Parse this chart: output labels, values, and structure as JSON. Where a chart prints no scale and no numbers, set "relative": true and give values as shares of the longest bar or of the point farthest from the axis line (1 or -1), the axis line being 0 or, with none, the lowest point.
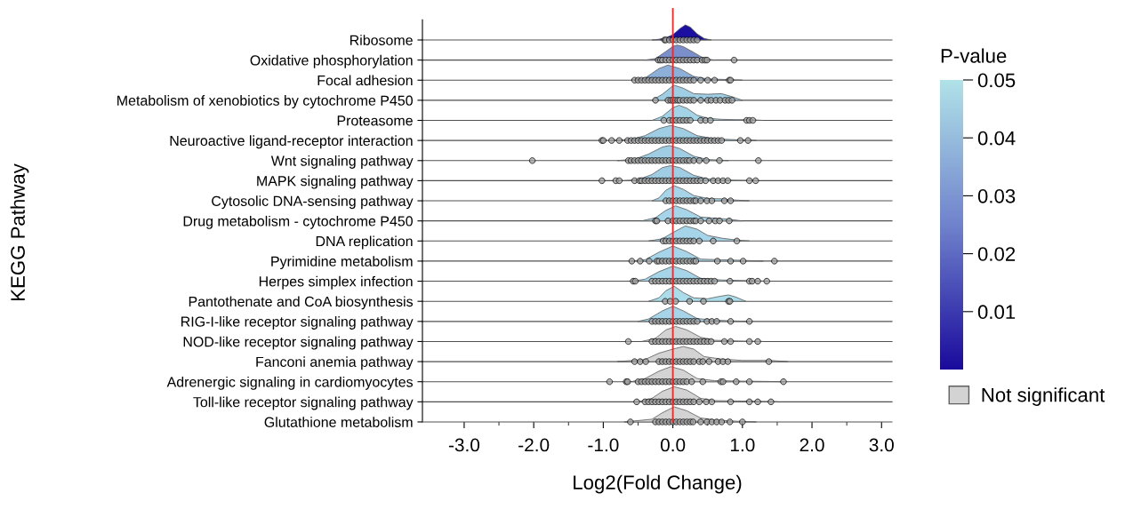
{
  "chart_data": [
    {
      "type": "area",
      "relative": true,
      "ylabel": "Ribosome",
      "xlim": [
        -3.6,
        3.15
      ],
      "tick_labels": "y",
      "annotations": [
        "KEGG Pathway"
      ],
      "clabel": "P-value",
      "clim": [
        0,
        0.05
      ],
      "cticks": [
        {
          "value": 0.01,
          "label": "0.01"
        },
        {
          "value": 0.02,
          "label": "0.02"
        },
        {
          "value": 0.03,
          "label": "0.03"
        },
        {
          "value": 0.04,
          "label": "0.04"
        },
        {
          "value": 0.05,
          "label": "0.05"
        }
      ],
      "colors": [
        "#1a0a9c",
        "#6f82cc",
        "#b0e2e8"
      ],
      "ref_lines": [
        {
          "axis": "x",
          "value": 0,
          "color": "#ff2020"
        }
      ],
      "series": [
        {
          "color": "#1a0fa0",
          "x": [
            -0.3,
            -0.2,
            -0.1,
            0,
            0.1,
            0.18,
            0.25,
            0.35,
            0.45,
            0.55
          ],
          "values": [
            0,
            0.05,
            0.15,
            0.35,
            0.75,
            1,
            0.85,
            0.4,
            0.1,
            0
          ]
        },
        {
          "type": "scatter",
          "marker": "circle",
          "color": "#a0a0a0",
          "x": [
            -0.12,
            -0.1,
            -0.05,
            0,
            0.05,
            0.1,
            0.15,
            0.2,
            0.25,
            0.3,
            0.35
          ],
          "values": [
            0,
            0,
            0,
            0,
            0,
            0,
            0,
            0,
            0,
            0,
            0
          ]
        }
      ]
    },
    {
      "type": "area",
      "relative": true,
      "ylabel": "Oxidative phosphorylation",
      "xlim": [
        -3.6,
        3.15
      ],
      "tick_labels": "y",
      "ref_lines": [
        {
          "axis": "x",
          "value": 0,
          "color": "#ff2020"
        }
      ],
      "series": [
        {
          "color": "#7b8fcc",
          "x": [
            -0.4,
            -0.25,
            -0.1,
            0,
            0.06,
            0.15,
            0.3,
            0.45,
            0.6
          ],
          "values": [
            0,
            0.1,
            0.57,
            0.91,
            1,
            0.89,
            0.51,
            0.1,
            0
          ]
        },
        {
          "type": "scatter",
          "marker": "circle",
          "color": "#a0a0a0",
          "x": [
            -0.21,
            -0.18,
            -0.15,
            -0.1,
            -0.05,
            0,
            0.05,
            0.1,
            0.15,
            0.2,
            0.25,
            0.3,
            0.35,
            0.42,
            0.46,
            0.49,
            0.88
          ],
          "values": [
            0,
            0,
            0,
            0,
            0,
            0,
            0,
            0,
            0,
            0,
            0,
            0,
            0,
            0,
            0,
            0,
            0
          ]
        }
      ]
    },
    {
      "type": "area",
      "relative": true,
      "ylabel": "Focal adhesion",
      "xlim": [
        -3.6,
        3.15
      ],
      "tick_labels": "y",
      "ref_lines": [
        {
          "axis": "x",
          "value": 0,
          "color": "#ff2020"
        }
      ],
      "series": [
        {
          "color": "#8db0d9",
          "x": [
            -0.6,
            -0.4,
            -0.2,
            -0.07,
            0.1,
            0.3,
            0.5,
            0.8,
            1.0
          ],
          "values": [
            0,
            0.14,
            0.77,
            1,
            0.77,
            0.25,
            0.08,
            0.04,
            0
          ]
        },
        {
          "type": "scatter",
          "marker": "circle",
          "color": "#a0a0a0",
          "x": [
            -0.55,
            -0.5,
            -0.45,
            -0.4,
            -0.35,
            -0.3,
            -0.25,
            -0.2,
            -0.15,
            -0.1,
            -0.05,
            0,
            0.05,
            0.1,
            0.15,
            0.2,
            0.25,
            0.3,
            0.4,
            0.5,
            0.6,
            0.81,
            0.83
          ],
          "values": [
            0,
            0,
            0,
            0,
            0,
            0,
            0,
            0,
            0,
            0,
            0,
            0,
            0,
            0,
            0,
            0,
            0,
            0,
            0,
            0,
            0,
            0,
            0
          ]
        }
      ]
    },
    {
      "type": "area",
      "relative": true,
      "ylabel": "Metabolism of xenobiotics by cytochrome P450",
      "xlim": [
        -3.6,
        3.15
      ],
      "tick_labels": "y",
      "ref_lines": [
        {
          "axis": "x",
          "value": 0,
          "color": "#ff2020"
        }
      ],
      "series": [
        {
          "color": "#9fcde3",
          "x": [
            -0.3,
            -0.15,
            0,
            0.02,
            0.15,
            0.3,
            0.5,
            0.7,
            0.85,
            1.0
          ],
          "values": [
            0,
            0.4,
            0.96,
            1,
            0.8,
            0.44,
            0.4,
            0.44,
            0.24,
            0
          ]
        },
        {
          "type": "scatter",
          "marker": "circle",
          "color": "#a0a0a0",
          "x": [
            -0.25,
            -0.07,
            -0.03,
            0,
            0.03,
            0.07,
            0.1,
            0.15,
            0.2,
            0.25,
            0.3,
            0.4,
            0.5,
            0.55,
            0.62,
            0.68,
            0.75,
            0.8,
            0.85
          ],
          "values": [
            0,
            0,
            0,
            0,
            0,
            0,
            0,
            0,
            0,
            0,
            0,
            0,
            0,
            0,
            0,
            0,
            0,
            0,
            0
          ]
        }
      ]
    },
    {
      "type": "area",
      "relative": true,
      "ylabel": "Proteasome",
      "xlim": [
        -3.6,
        3.15
      ],
      "tick_labels": "y",
      "ref_lines": [
        {
          "axis": "x",
          "value": 0,
          "color": "#ff2020"
        }
      ],
      "series": [
        {
          "color": "#a3d3e6",
          "x": [
            -0.3,
            -0.15,
            0,
            0.09,
            0.2,
            0.35,
            0.5,
            0.7,
            0.9,
            1.1,
            1.3
          ],
          "values": [
            0,
            0.27,
            0.84,
            1,
            0.81,
            0.34,
            0.14,
            0.07,
            0.05,
            0.05,
            0
          ]
        },
        {
          "type": "scatter",
          "marker": "circle",
          "color": "#a0a0a0",
          "x": [
            -0.13,
            -0.05,
            0,
            0.05,
            0.1,
            0.15,
            0.2,
            0.25,
            0.4,
            0.47,
            0.54,
            1.06,
            1.1,
            1.15
          ],
          "values": [
            0,
            0,
            0,
            0,
            0,
            0,
            0,
            0,
            0,
            0,
            0,
            0,
            0,
            0
          ]
        }
      ]
    },
    {
      "type": "area",
      "relative": true,
      "ylabel": "Neuroactive ligand-receptor interaction",
      "xlim": [
        -3.6,
        3.15
      ],
      "tick_labels": "y",
      "ref_lines": [
        {
          "axis": "x",
          "value": 0,
          "color": "#ff2020"
        }
      ],
      "series": [
        {
          "color": "#9fcde3",
          "x": [
            -0.9,
            -0.6,
            -0.4,
            -0.2,
            -0.03,
            0.15,
            0.35,
            0.6,
            0.9,
            1.2
          ],
          "values": [
            0,
            0.07,
            0.32,
            0.79,
            1,
            0.79,
            0.32,
            0.11,
            0.05,
            0
          ]
        },
        {
          "type": "scatter",
          "marker": "circle",
          "color": "#a0a0a0",
          "x": [
            -1.02,
            -1.0,
            -0.88,
            -0.77,
            -0.65,
            -0.6,
            -0.55,
            -0.5,
            -0.45,
            -0.4,
            -0.35,
            -0.3,
            -0.25,
            -0.2,
            -0.15,
            -0.1,
            -0.05,
            0,
            0.05,
            0.1,
            0.15,
            0.2,
            0.25,
            0.3,
            0.35,
            0.4,
            0.45,
            0.5,
            0.55,
            0.6,
            0.65,
            0.7,
            0.97,
            1.08
          ],
          "values": [
            0,
            0,
            0,
            0,
            0,
            0,
            0,
            0,
            0,
            0,
            0,
            0,
            0,
            0,
            0,
            0,
            0,
            0,
            0,
            0,
            0,
            0,
            0,
            0,
            0,
            0,
            0,
            0,
            0,
            0,
            0,
            0,
            0,
            0
          ]
        }
      ]
    },
    {
      "type": "area",
      "relative": true,
      "ylabel": "Wnt signaling pathway",
      "xlim": [
        -3.6,
        3.15
      ],
      "tick_labels": "y",
      "ref_lines": [
        {
          "axis": "x",
          "value": 0,
          "color": "#ff2020"
        }
      ],
      "series": [
        {
          "color": "#9fcde3",
          "x": [
            -0.8,
            -0.55,
            -0.35,
            -0.15,
            -0.05,
            0.1,
            0.3,
            0.5,
            0.8
          ],
          "values": [
            0,
            0.09,
            0.43,
            0.9,
            1,
            0.8,
            0.29,
            0.07,
            0
          ]
        },
        {
          "type": "scatter",
          "marker": "circle",
          "color": "#a0a0a0",
          "x": [
            -2.02,
            -0.64,
            -0.6,
            -0.55,
            -0.5,
            -0.45,
            -0.4,
            -0.35,
            -0.3,
            -0.25,
            -0.2,
            -0.15,
            -0.1,
            -0.05,
            0,
            0.05,
            0.1,
            0.15,
            0.2,
            0.24,
            0.3,
            0.38,
            0.48,
            0.67,
            1.23
          ],
          "values": [
            0,
            0,
            0,
            0,
            0,
            0,
            0,
            0,
            0,
            0,
            0,
            0,
            0,
            0,
            0,
            0,
            0,
            0,
            0,
            0,
            0,
            0,
            0,
            0,
            0
          ]
        }
      ]
    },
    {
      "type": "area",
      "relative": true,
      "ylabel": "MAPK signaling pathway",
      "xlim": [
        -3.6,
        3.15
      ],
      "tick_labels": "y",
      "ref_lines": [
        {
          "axis": "x",
          "value": 0,
          "color": "#ff2020"
        }
      ],
      "series": [
        {
          "color": "#9fcde3",
          "x": [
            -0.7,
            -0.5,
            -0.3,
            -0.15,
            -0.03,
            0.1,
            0.3,
            0.5,
            0.8,
            1.2
          ],
          "values": [
            0,
            0.07,
            0.41,
            0.87,
            1,
            0.87,
            0.36,
            0.12,
            0.04,
            0
          ]
        },
        {
          "type": "scatter",
          "marker": "circle",
          "color": "#a0a0a0",
          "x": [
            -1.02,
            -0.82,
            -0.77,
            -0.55,
            -0.48,
            -0.45,
            -0.4,
            -0.35,
            -0.3,
            -0.25,
            -0.2,
            -0.15,
            -0.1,
            -0.05,
            0,
            0.05,
            0.1,
            0.15,
            0.2,
            0.25,
            0.3,
            0.35,
            0.4,
            0.47,
            0.58,
            0.65,
            0.72,
            0.79,
            1.1,
            1.19
          ],
          "values": [
            0,
            0,
            0,
            0,
            0,
            0,
            0,
            0,
            0,
            0,
            0,
            0,
            0,
            0,
            0,
            0,
            0,
            0,
            0,
            0,
            0,
            0,
            0,
            0,
            0,
            0,
            0,
            0,
            0,
            0
          ]
        }
      ]
    },
    {
      "type": "area",
      "relative": true,
      "ylabel": "Cytosolic DNA-sensing pathway",
      "xlim": [
        -3.6,
        3.15
      ],
      "tick_labels": "y",
      "ref_lines": [
        {
          "axis": "x",
          "value": 0,
          "color": "#ff2020"
        }
      ],
      "series": [
        {
          "color": "#a6d4e8",
          "x": [
            -0.3,
            -0.2,
            -0.1,
            0.02,
            0.15,
            0.3,
            0.5,
            0.7,
            0.9,
            1.1
          ],
          "values": [
            0,
            0.19,
            0.7,
            1,
            0.76,
            0.35,
            0.15,
            0.13,
            0.05,
            0
          ]
        },
        {
          "type": "scatter",
          "marker": "circle",
          "color": "#a0a0a0",
          "x": [
            -0.1,
            -0.05,
            0,
            0.05,
            0.1,
            0.15,
            0.2,
            0.25,
            0.3,
            0.33,
            0.4,
            0.49,
            0.56,
            0.74,
            0.83
          ],
          "values": [
            0,
            0,
            0,
            0,
            0,
            0,
            0,
            0,
            0,
            0,
            0,
            0,
            0,
            0,
            0
          ]
        }
      ]
    },
    {
      "type": "area",
      "relative": true,
      "ylabel": "Drug metabolism - cytochrome P450",
      "xlim": [
        -3.6,
        3.15
      ],
      "tick_labels": "y",
      "ref_lines": [
        {
          "axis": "x",
          "value": 0,
          "color": "#ff2020"
        }
      ],
      "series": [
        {
          "color": "#a6d4e8",
          "x": [
            -0.45,
            -0.25,
            -0.1,
            0.04,
            0.2,
            0.4,
            0.6,
            0.8,
            1.0
          ],
          "values": [
            0,
            0.21,
            0.7,
            1,
            0.74,
            0.26,
            0.18,
            0.11,
            0
          ]
        },
        {
          "type": "scatter",
          "marker": "circle",
          "color": "#a0a0a0",
          "x": [
            -0.25,
            -0.23,
            -0.07,
            0,
            0.05,
            0.1,
            0.15,
            0.2,
            0.25,
            0.3,
            0.33,
            0.4,
            0.52,
            0.61,
            0.67,
            0.81
          ],
          "values": [
            0,
            0,
            0,
            0,
            0,
            0,
            0,
            0,
            0,
            0,
            0,
            0,
            0,
            0,
            0,
            0
          ]
        }
      ]
    },
    {
      "type": "area",
      "relative": true,
      "ylabel": "DNA replication",
      "xlim": [
        -3.6,
        3.15
      ],
      "tick_labels": "y",
      "ref_lines": [
        {
          "axis": "x",
          "value": 0,
          "color": "#ff2020"
        }
      ],
      "series": [
        {
          "color": "#a6d4e8",
          "x": [
            -0.35,
            -0.15,
            0,
            0.18,
            0.35,
            0.5,
            0.7,
            0.9,
            1.1
          ],
          "values": [
            0,
            0.15,
            0.56,
            1,
            0.78,
            0.37,
            0.19,
            0.07,
            0
          ]
        },
        {
          "type": "scatter",
          "marker": "circle",
          "color": "#a0a0a0",
          "x": [
            -0.14,
            -0.1,
            -0.05,
            0,
            0.05,
            0.1,
            0.15,
            0.2,
            0.25,
            0.3,
            0.38,
            0.58,
            0.92
          ],
          "values": [
            0,
            0,
            0,
            0,
            0,
            0,
            0,
            0,
            0,
            0,
            0,
            0,
            0
          ]
        }
      ]
    },
    {
      "type": "area",
      "relative": true,
      "ylabel": "Pyrimidine metabolism",
      "xlim": [
        -3.6,
        3.15
      ],
      "tick_labels": "y",
      "ref_lines": [
        {
          "axis": "x",
          "value": 0,
          "color": "#ff2020"
        }
      ],
      "series": [
        {
          "color": "#a6d4e8",
          "x": [
            -0.6,
            -0.4,
            -0.2,
            0,
            0.2,
            0.4,
            0.7,
            1.0,
            1.3
          ],
          "values": [
            0,
            0.09,
            0.59,
            1,
            0.63,
            0.13,
            0.09,
            0.05,
            0
          ]
        },
        {
          "type": "scatter",
          "marker": "circle",
          "color": "#a0a0a0",
          "x": [
            -0.59,
            -0.47,
            -0.34,
            -0.23,
            -0.2,
            -0.15,
            -0.1,
            -0.05,
            0,
            0.05,
            0.1,
            0.15,
            0.2,
            0.25,
            0.3,
            0.33,
            0.64,
            0.83,
            1.01,
            1.46
          ],
          "values": [
            0,
            0,
            0,
            0,
            0,
            0,
            0,
            0,
            0,
            0,
            0,
            0,
            0,
            0,
            0,
            0,
            0,
            0,
            0,
            0
          ]
        }
      ]
    },
    {
      "type": "area",
      "relative": true,
      "ylabel": "Herpes simplex infection",
      "xlim": [
        -3.6,
        3.15
      ],
      "tick_labels": "y",
      "ref_lines": [
        {
          "axis": "x",
          "value": 0,
          "color": "#ff2020"
        }
      ],
      "series": [
        {
          "color": "#a6d4e8",
          "x": [
            -0.6,
            -0.4,
            -0.2,
            0,
            0.2,
            0.4,
            0.7,
            1.0,
            1.4
          ],
          "values": [
            0,
            0.13,
            0.63,
            1,
            0.7,
            0.19,
            0.08,
            0.05,
            0
          ]
        },
        {
          "type": "scatter",
          "marker": "circle",
          "color": "#a0a0a0",
          "x": [
            -0.57,
            -0.54,
            -0.3,
            -0.25,
            -0.2,
            -0.15,
            -0.1,
            -0.05,
            0,
            0.05,
            0.1,
            0.15,
            0.2,
            0.25,
            0.3,
            0.35,
            0.4,
            0.45,
            0.5,
            0.55,
            0.6,
            0.82,
            1.1,
            1.14,
            1.22,
            1.35
          ],
          "values": [
            0,
            0,
            0,
            0,
            0,
            0,
            0,
            0,
            0,
            0,
            0,
            0,
            0,
            0,
            0,
            0,
            0,
            0,
            0,
            0,
            0,
            0,
            0,
            0,
            0,
            0
          ]
        }
      ]
    },
    {
      "type": "area",
      "relative": true,
      "ylabel": "Pantothenate and CoA biosynthesis",
      "xlim": [
        -3.6,
        3.15
      ],
      "tick_labels": "y",
      "ref_lines": [
        {
          "axis": "x",
          "value": 0,
          "color": "#ff2020"
        }
      ],
      "series": [
        {
          "color": "#aadcea",
          "x": [
            -0.35,
            -0.2,
            -0.1,
            0.02,
            0.15,
            0.3,
            0.5,
            0.7,
            0.8,
            0.9,
            1.05
          ],
          "values": [
            0,
            0.23,
            0.7,
            1,
            0.58,
            0.23,
            0.17,
            0.35,
            0.42,
            0.29,
            0
          ]
        },
        {
          "type": "scatter",
          "marker": "circle",
          "color": "#a0a0a0",
          "x": [
            -0.11,
            -0.04,
            0.04,
            0.24,
            0.44,
            0.8,
            0.82
          ],
          "values": [
            0,
            0,
            0,
            0,
            0,
            0,
            0
          ]
        }
      ]
    },
    {
      "type": "area",
      "relative": true,
      "ylabel": "RIG-I-like receptor signaling pathway",
      "xlim": [
        -3.6,
        3.15
      ],
      "tick_labels": "y",
      "ref_lines": [
        {
          "axis": "x",
          "value": 0,
          "color": "#ff2020"
        }
      ],
      "series": [
        {
          "color": "#a6d4e8",
          "x": [
            -0.5,
            -0.35,
            -0.15,
            0,
            0.15,
            0.35,
            0.6,
            0.9,
            1.1
          ],
          "values": [
            0,
            0.16,
            0.7,
            1,
            0.7,
            0.19,
            0.08,
            0.03,
            0
          ]
        },
        {
          "type": "scatter",
          "marker": "circle",
          "color": "#a0a0a0",
          "x": [
            -0.3,
            -0.25,
            -0.2,
            -0.15,
            -0.1,
            -0.05,
            0,
            0.05,
            0.1,
            0.15,
            0.2,
            0.25,
            0.3,
            0.35,
            0.49,
            0.56,
            0.63,
            0.83,
            1.1
          ],
          "values": [
            0,
            0,
            0,
            0,
            0,
            0,
            0,
            0,
            0,
            0,
            0,
            0,
            0,
            0,
            0,
            0,
            0,
            0,
            0
          ]
        }
      ]
    },
    {
      "type": "area",
      "relative": true,
      "ylabel": "NOD-like receptor signaling pathway",
      "xlim": [
        -3.6,
        3.15
      ],
      "tick_labels": "y",
      "ref_lines": [
        {
          "axis": "x",
          "value": 0,
          "color": "#ff2020"
        }
      ],
      "series": [
        {
          "color": "#d3d3d3",
          "x": [
            -0.45,
            -0.25,
            -0.1,
            0.04,
            0.2,
            0.4,
            0.6,
            0.9,
            1.3
          ],
          "values": [
            0,
            0.21,
            0.77,
            1,
            0.77,
            0.28,
            0.08,
            0.04,
            0
          ]
        },
        {
          "type": "scatter",
          "marker": "circle",
          "color": "#a0a0a0",
          "x": [
            -0.64,
            -0.3,
            -0.25,
            -0.2,
            -0.15,
            -0.1,
            -0.05,
            0,
            0.05,
            0.1,
            0.15,
            0.2,
            0.25,
            0.3,
            0.35,
            0.4,
            0.45,
            0.5,
            0.55,
            0.74,
            0.83,
            1.1,
            1.22
          ],
          "values": [
            0,
            0,
            0,
            0,
            0,
            0,
            0,
            0,
            0,
            0,
            0,
            0,
            0,
            0,
            0,
            0,
            0,
            0,
            0,
            0,
            0,
            0,
            0
          ]
        }
      ]
    },
    {
      "type": "area",
      "relative": true,
      "ylabel": "Fanconi anemia pathway",
      "xlim": [
        -3.6,
        3.15
      ],
      "tick_labels": "y",
      "ref_lines": [
        {
          "axis": "x",
          "value": 0,
          "color": "#ff2020"
        }
      ],
      "series": [
        {
          "color": "#d3d3d3",
          "x": [
            -0.8,
            -0.4,
            -0.2,
            0,
            0.15,
            0.3,
            0.45,
            0.7,
            1.0,
            1.4,
            1.65
          ],
          "values": [
            0,
            0.14,
            0.56,
            0.83,
            1,
            0.83,
            0.33,
            0.17,
            0.08,
            0.08,
            0
          ]
        },
        {
          "type": "scatter",
          "marker": "circle",
          "color": "#a0a0a0",
          "x": [
            -0.55,
            -0.47,
            -0.39,
            -0.2,
            -0.15,
            -0.1,
            -0.05,
            0,
            0.05,
            0.1,
            0.15,
            0.2,
            0.25,
            0.3,
            0.38,
            0.43,
            0.52,
            0.65,
            0.72,
            0.79,
            1.38
          ],
          "values": [
            0,
            0,
            0,
            0,
            0,
            0,
            0,
            0,
            0,
            0,
            0,
            0,
            0,
            0,
            0,
            0,
            0,
            0,
            0,
            0,
            0
          ]
        }
      ]
    },
    {
      "type": "area",
      "relative": true,
      "ylabel": "Adrenergic signaling in cardiomyocytes",
      "xlim": [
        -3.6,
        3.15
      ],
      "tick_labels": "y",
      "legend": "right",
      "ref_lines": [
        {
          "axis": "x",
          "value": 0,
          "color": "#ff2020"
        }
      ],
      "series": [
        {
          "name": "Not significant",
          "color": "#d3d3d3",
          "x": [
            -0.6,
            -0.4,
            -0.2,
            -0.03,
            0.15,
            0.35,
            0.6,
            1.0,
            1.6
          ],
          "values": [
            0,
            0.21,
            0.7,
            1,
            0.77,
            0.21,
            0.07,
            0.04,
            0
          ]
        },
        {
          "type": "scatter",
          "marker": "circle",
          "color": "#a0a0a0",
          "x": [
            -0.91,
            -0.67,
            -0.65,
            -0.5,
            -0.45,
            -0.4,
            -0.35,
            -0.3,
            -0.25,
            -0.2,
            -0.15,
            -0.1,
            -0.05,
            0,
            0.05,
            0.1,
            0.15,
            0.2,
            0.27,
            0.43,
            0.69,
            0.72,
            0.91,
            1.1,
            1.59
          ],
          "values": [
            0,
            0,
            0,
            0,
            0,
            0,
            0,
            0,
            0,
            0,
            0,
            0,
            0,
            0,
            0,
            0,
            0,
            0,
            0,
            0,
            0,
            0,
            0,
            0,
            0
          ]
        }
      ]
    },
    {
      "type": "area",
      "relative": true,
      "ylabel": "Toll-like receptor signaling pathway",
      "xlim": [
        -3.6,
        3.15
      ],
      "tick_labels": "y",
      "ref_lines": [
        {
          "axis": "x",
          "value": 0,
          "color": "#ff2020"
        }
      ],
      "series": [
        {
          "color": "#d3d3d3",
          "x": [
            -0.5,
            -0.3,
            -0.15,
            0.02,
            0.2,
            0.4,
            0.6,
            1.0,
            1.5
          ],
          "values": [
            0,
            0.23,
            0.7,
            1,
            0.78,
            0.23,
            0.08,
            0.05,
            0
          ]
        },
        {
          "type": "scatter",
          "marker": "circle",
          "color": "#a0a0a0",
          "x": [
            -0.52,
            -0.4,
            -0.35,
            -0.3,
            -0.25,
            -0.2,
            -0.15,
            -0.1,
            -0.05,
            0,
            0.05,
            0.1,
            0.15,
            0.2,
            0.25,
            0.3,
            0.38,
            0.48,
            0.56,
            0.83,
            1.1,
            1.22,
            1.41
          ],
          "values": [
            0,
            0,
            0,
            0,
            0,
            0,
            0,
            0,
            0,
            0,
            0,
            0,
            0,
            0,
            0,
            0,
            0,
            0,
            0,
            0,
            0,
            0,
            0
          ]
        }
      ]
    },
    {
      "type": "area",
      "relative": true,
      "ylabel": "Glutathione metabolism",
      "xlabel": "Log2(Fold Change)",
      "xlim": [
        -3.6,
        3.15
      ],
      "xticks": [
        {
          "value": -3,
          "label": "-3.0"
        },
        {
          "value": -2.5,
          "label": null
        },
        {
          "value": -2,
          "label": "-2.0"
        },
        {
          "value": -1.5,
          "label": null
        },
        {
          "value": -1,
          "label": "-1.0"
        },
        {
          "value": -0.5,
          "label": null
        },
        {
          "value": 0,
          "label": "0.0"
        },
        {
          "value": 0.5,
          "label": null
        },
        {
          "value": 1,
          "label": "1.0"
        },
        {
          "value": 1.5,
          "label": null
        },
        {
          "value": 2,
          "label": "2.0"
        },
        {
          "value": 2.5,
          "label": null
        },
        {
          "value": 3,
          "label": "3.0"
        }
      ],
      "ref_lines": [
        {
          "axis": "x",
          "value": 0,
          "color": "#ff2020"
        }
      ],
      "series": [
        {
          "color": "#d3d3d3",
          "x": [
            -0.7,
            -0.3,
            -0.15,
            0.02,
            0.2,
            0.4,
            0.6,
            0.9,
            1.2
          ],
          "values": [
            0,
            0.18,
            0.61,
            1,
            0.74,
            0.26,
            0.14,
            0.05,
            0
          ]
        },
        {
          "type": "scatter",
          "marker": "circle",
          "color": "#a0a0a0",
          "x": [
            -0.61,
            -0.25,
            -0.2,
            -0.15,
            -0.1,
            -0.05,
            0,
            0.05,
            0.1,
            0.15,
            0.2,
            0.25,
            0.29,
            0.4,
            0.49,
            0.56,
            0.63,
            0.7,
            0.82,
            1.0
          ],
          "values": [
            0,
            0,
            0,
            0,
            0,
            0,
            0,
            0,
            0,
            0,
            0,
            0,
            0,
            0,
            0,
            0,
            0,
            0,
            0,
            0
          ]
        }
      ]
    }
  ]
}
